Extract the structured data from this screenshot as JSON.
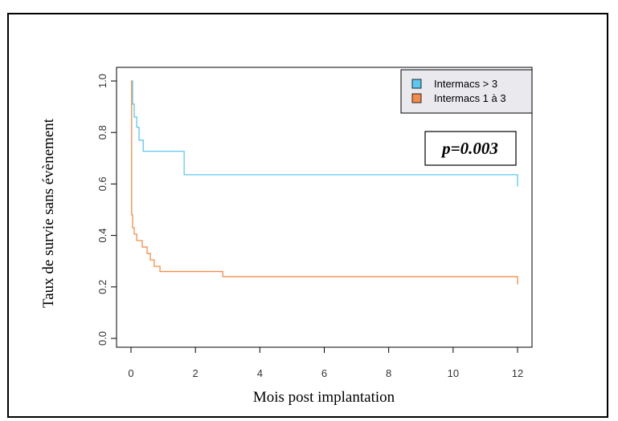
{
  "chart_data": {
    "type": "line",
    "subtype": "kaplan-meier step",
    "title": "",
    "xlabel": "Mois post implantation",
    "ylabel": "Taux  de survie sans évènement",
    "xlim": [
      0,
      12
    ],
    "ylim": [
      0,
      1
    ],
    "x_ticks": [
      "0",
      "2",
      "4",
      "6",
      "8",
      "10",
      "12"
    ],
    "y_ticks": [
      "0.0",
      "0.2",
      "0.4",
      "0.6",
      "0.8",
      "1.0"
    ],
    "grid": false,
    "legend_position": "top-right",
    "annotation": "p=0.003",
    "series": [
      {
        "name": "Intermacs > 3",
        "color": "#5bc8f0",
        "x": [
          0,
          0.05,
          0.1,
          0.18,
          0.25,
          0.38,
          1.65,
          12
        ],
        "y": [
          1.0,
          0.91,
          0.86,
          0.82,
          0.77,
          0.727,
          0.636,
          0.59
        ]
      },
      {
        "name": "Intermacs 1 à 3",
        "color": "#f58c4a",
        "x": [
          0,
          0.02,
          0.05,
          0.1,
          0.18,
          0.35,
          0.5,
          0.6,
          0.72,
          0.9,
          2.85,
          12
        ],
        "y": [
          1.0,
          0.48,
          0.43,
          0.405,
          0.38,
          0.355,
          0.33,
          0.305,
          0.28,
          0.26,
          0.24,
          0.21
        ]
      }
    ]
  }
}
